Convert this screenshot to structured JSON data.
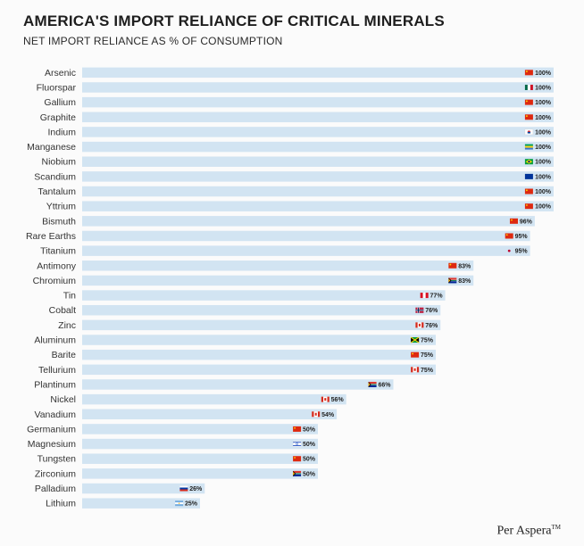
{
  "chart_data": {
    "type": "bar",
    "orientation": "horizontal",
    "title": "AMERICA'S IMPORT RELIANCE OF CRITICAL MINERALS",
    "subtitle": "NET IMPORT RELIANCE AS % OF CONSUMPTION",
    "xlim": [
      0,
      100
    ],
    "grid": false,
    "bar_color": "#d2e4f2",
    "value_suffix": "%",
    "categories": [
      "Arsenic",
      "Fluorspar",
      "Gallium",
      "Graphite",
      "Indium",
      "Manganese",
      "Niobium",
      "Scandium",
      "Tantalum",
      "Yttrium",
      "Bismuth",
      "Rare Earths",
      "Titanium",
      "Antimony",
      "Chromium",
      "Tin",
      "Cobalt",
      "Zinc",
      "Aluminum",
      "Barite",
      "Tellurium",
      "Plantinum",
      "Nickel",
      "Vanadium",
      "Germanium",
      "Magnesium",
      "Tungsten",
      "Zirconium",
      "Palladium",
      "Lithium"
    ],
    "values": [
      100,
      100,
      100,
      100,
      100,
      100,
      100,
      100,
      100,
      100,
      96,
      95,
      95,
      83,
      83,
      77,
      76,
      76,
      75,
      75,
      75,
      66,
      56,
      54,
      50,
      50,
      50,
      50,
      26,
      25
    ],
    "top_source_flags": [
      "china-flag",
      "mexico-flag",
      "china-flag",
      "china-flag",
      "south-korea-flag",
      "gabon-flag",
      "brazil-flag",
      "eu-flag",
      "china-flag",
      "china-flag",
      "china-flag",
      "china-flag",
      "japan-flag",
      "china-flag",
      "south-africa-flag",
      "peru-flag",
      "norway-flag",
      "canada-flag",
      "jamaica-flag",
      "china-flag",
      "canada-flag",
      "south-africa-flag",
      "canada-flag",
      "canada-flag",
      "china-flag",
      "israel-flag",
      "china-flag",
      "south-africa-flag",
      "russia-flag",
      "argentina-flag"
    ]
  },
  "brand": {
    "name": "Per Aspera",
    "mark": "TM"
  }
}
